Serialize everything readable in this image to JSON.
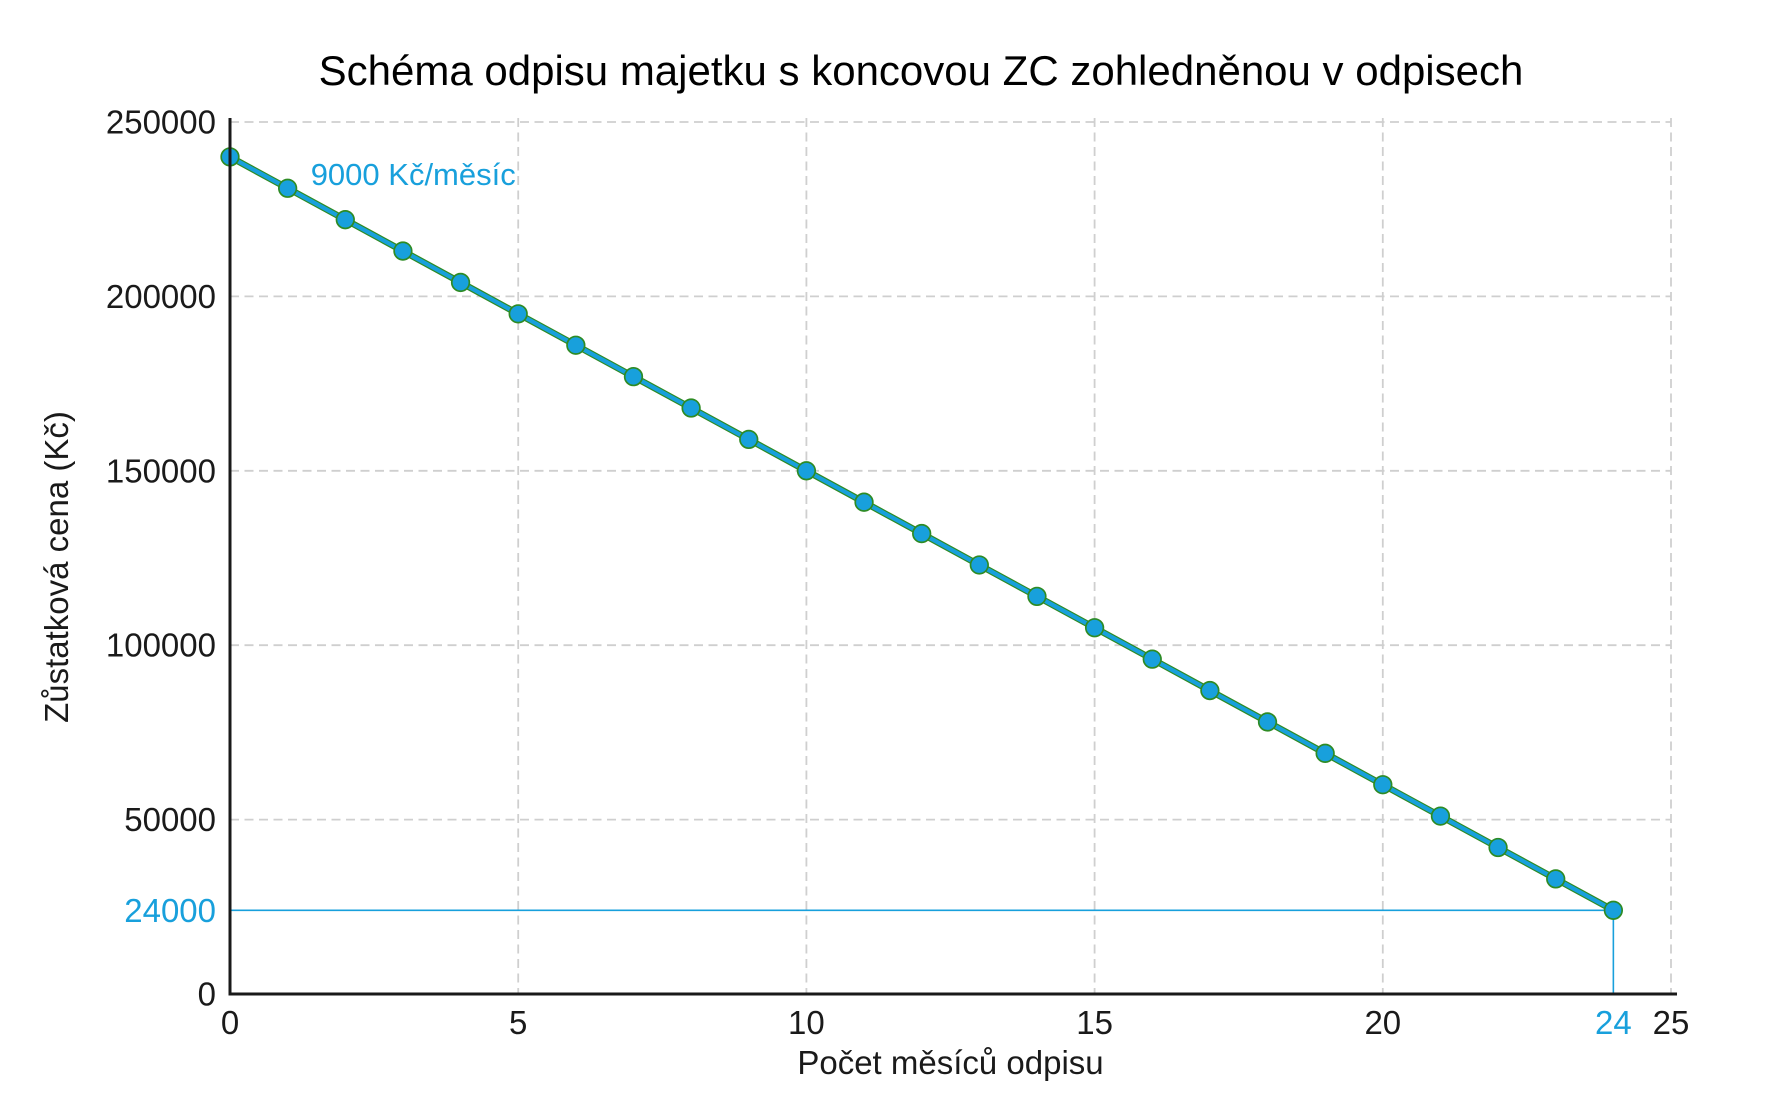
{
  "chart_data": {
    "type": "line",
    "title": "Schéma odpisu majetku s koncovou ZC zohledněnou v odpisech",
    "xlabel": "Počet měsíců odpisu",
    "ylabel": "Zůstatková cena (Kč)",
    "x": [
      0,
      1,
      2,
      3,
      4,
      5,
      6,
      7,
      8,
      9,
      10,
      11,
      12,
      13,
      14,
      15,
      16,
      17,
      18,
      19,
      20,
      21,
      22,
      23,
      24
    ],
    "series": [
      {
        "name": "Zůstatková cena",
        "values": [
          240000,
          231000,
          222000,
          213000,
          204000,
          195000,
          186000,
          177000,
          168000,
          159000,
          150000,
          141000,
          132000,
          123000,
          114000,
          105000,
          96000,
          87000,
          78000,
          69000,
          60000,
          51000,
          42000,
          33000,
          24000
        ],
        "color": "#18a0dc",
        "edge_color": "#2e8b24",
        "marker": "circle"
      }
    ],
    "xlim": [
      0,
      25
    ],
    "ylim": [
      0,
      250000
    ],
    "x_ticks": [
      0,
      5,
      10,
      15,
      20,
      25
    ],
    "y_ticks": [
      0,
      50000,
      100000,
      150000,
      200000,
      250000
    ],
    "grid": true,
    "legend": "none",
    "annotation": {
      "text": "9000 Kč/měsíc",
      "x": 1.4,
      "y": 235000,
      "color": "#18a0dc"
    },
    "highlight": {
      "x": 24,
      "y": 24000,
      "x_label": "24",
      "y_label": "24000",
      "color": "#18a0dc"
    },
    "colors": {
      "grid": "#cfcfcf",
      "axis": "#1a1a1a",
      "tick_text": "#1a1a1a",
      "background": "#ffffff"
    }
  }
}
